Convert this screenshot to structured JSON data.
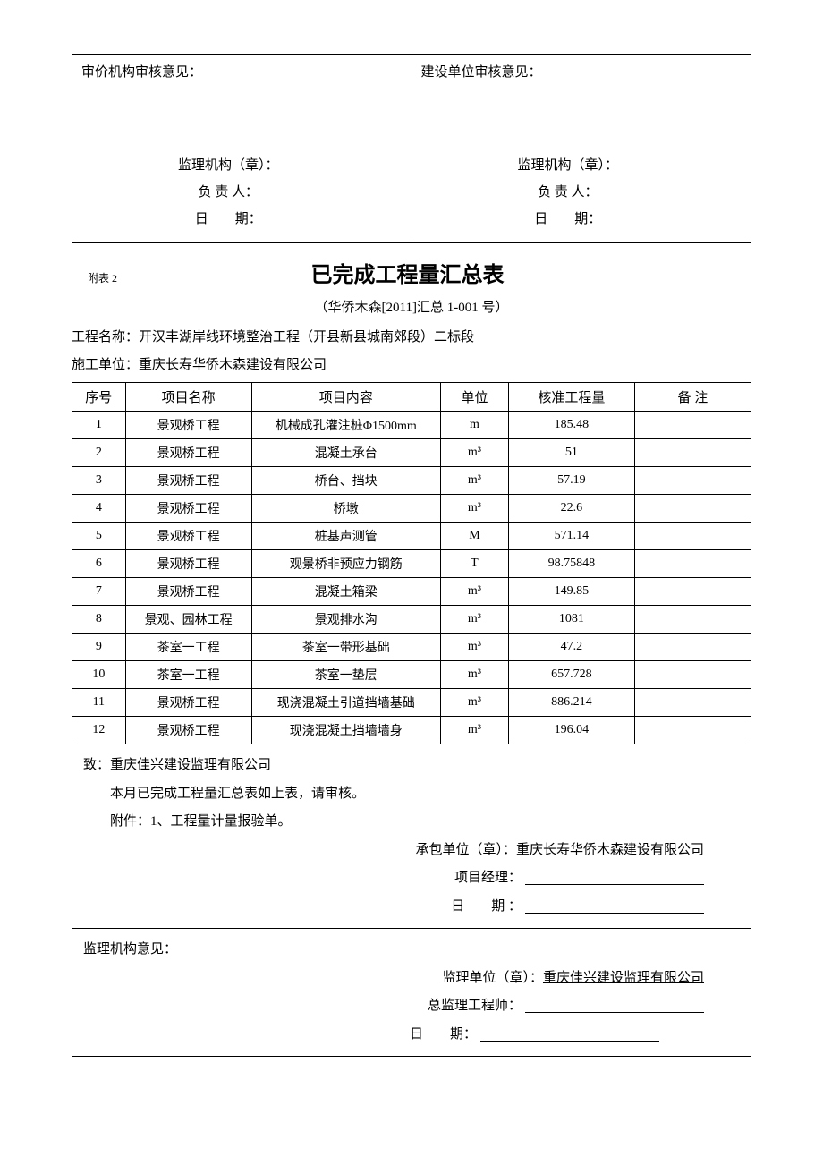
{
  "approval": {
    "left_title": "审价机构审核意见：",
    "right_title": "建设单位审核意见：",
    "org_label": "监理机构（章）：",
    "person_label": "负  责  人：",
    "date_label": "日　　期："
  },
  "header": {
    "annex": "附表 2",
    "title": "已完成工程量汇总表",
    "doc_number": "（华侨木森[2011]汇总 1-001 号）",
    "project_label": "工程名称：",
    "project_name": "开汉丰湖岸线环境整治工程（开县新县城南郊段）二标段",
    "contractor_label": "施工单位：",
    "contractor_name": "重庆长寿华侨木森建设有限公司"
  },
  "table": {
    "headers": {
      "idx": "序号",
      "name": "项目名称",
      "content": "项目内容",
      "unit": "单位",
      "qty": "核准工程量",
      "remark": "备  注"
    },
    "rows": [
      {
        "idx": "1",
        "name": "景观桥工程",
        "content": "机械成孔灌注桩Φ1500mm",
        "unit": "m",
        "qty": "185.48",
        "remark": ""
      },
      {
        "idx": "2",
        "name": "景观桥工程",
        "content": "混凝土承台",
        "unit": "m³",
        "qty": "51",
        "remark": ""
      },
      {
        "idx": "3",
        "name": "景观桥工程",
        "content": "桥台、挡块",
        "unit": "m³",
        "qty": "57.19",
        "remark": ""
      },
      {
        "idx": "4",
        "name": "景观桥工程",
        "content": "桥墩",
        "unit": "m³",
        "qty": "22.6",
        "remark": ""
      },
      {
        "idx": "5",
        "name": "景观桥工程",
        "content": "桩基声测管",
        "unit": "M",
        "qty": "571.14",
        "remark": ""
      },
      {
        "idx": "6",
        "name": "景观桥工程",
        "content": "观景桥非预应力钢筋",
        "unit": "T",
        "qty": "98.75848",
        "remark": ""
      },
      {
        "idx": "7",
        "name": "景观桥工程",
        "content": "混凝土箱梁",
        "unit": "m³",
        "qty": "149.85",
        "remark": ""
      },
      {
        "idx": "8",
        "name": "景观、园林工程",
        "content": "景观排水沟",
        "unit": "m³",
        "qty": "1081",
        "remark": ""
      },
      {
        "idx": "9",
        "name": "茶室一工程",
        "content": "茶室一带形基础",
        "unit": "m³",
        "qty": "47.2",
        "remark": ""
      },
      {
        "idx": "10",
        "name": "茶室一工程",
        "content": "茶室一垫层",
        "unit": "m³",
        "qty": "657.728",
        "remark": ""
      },
      {
        "idx": "11",
        "name": "景观桥工程",
        "content": "现浇混凝土引道挡墙基础",
        "unit": "m³",
        "qty": "886.214",
        "remark": ""
      },
      {
        "idx": "12",
        "name": "景观桥工程",
        "content": "现浇混凝土挡墙墙身",
        "unit": "m³",
        "qty": "196.04",
        "remark": ""
      }
    ]
  },
  "footer": {
    "to_label": "致：",
    "to_company": "重庆佳兴建设监理有限公司",
    "line1": "本月已完成工程量汇总表如上表，请审核。",
    "line2": "附件：1、工程量计量报验单。",
    "contractor_seal_label": "承包单位（章）：",
    "contractor_seal_name": "重庆长寿华侨木森建设有限公司",
    "pm_label": "项目经理：",
    "date_label1": "日　　期 ：",
    "supervisor_opinion": "监理机构意见：",
    "supervisor_seal_label": "监理单位（章）：",
    "supervisor_seal_name": "重庆佳兴建设监理有限公司",
    "chief_label": "总监理工程师：",
    "date_label2": "日　　期："
  }
}
